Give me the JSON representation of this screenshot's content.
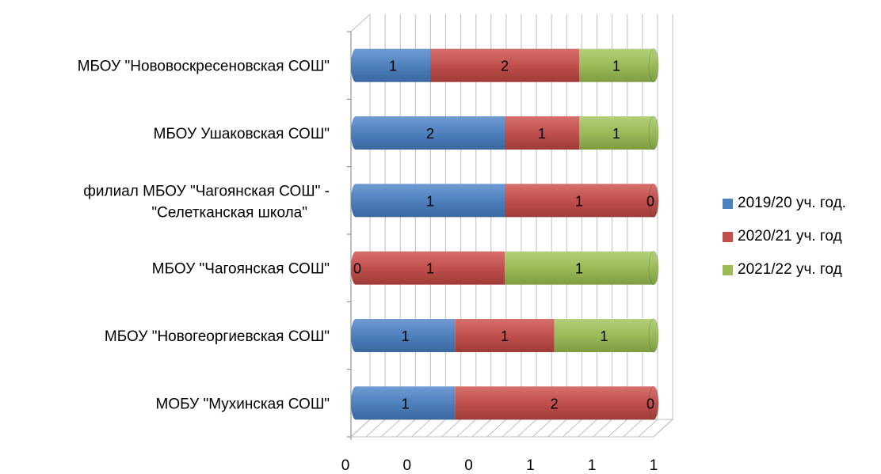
{
  "chart_data": {
    "type": "bar",
    "orientation": "horizontal",
    "stacked": "percent",
    "three_d": true,
    "categories": [
      "МОБУ \"Мухинская СОШ\"",
      "МБОУ \"Новогеоргиевская СОШ\"",
      "МБОУ \"Чагоянская СОШ\"",
      "филиал МБОУ \"Чагоянская СОШ\" - \"Селетканская школа\"",
      "МБОУ Ушаковская СОШ\"",
      "МБОУ \"Нововоскресеновская СОШ\""
    ],
    "series": [
      {
        "name": "2019/20 уч. год.",
        "color": "#4F81BD",
        "values": [
          1,
          1,
          0,
          1,
          2,
          1
        ]
      },
      {
        "name": "2020/21 уч. год",
        "color": "#C0504D",
        "values": [
          2,
          1,
          1,
          1,
          1,
          2
        ]
      },
      {
        "name": "2021/22 уч. год",
        "color": "#9BBB59",
        "values": [
          0,
          1,
          1,
          0,
          1,
          1
        ]
      }
    ],
    "x_tick_labels": [
      "0",
      "0",
      "0",
      "1",
      "1",
      "1"
    ],
    "xlim": [
      0,
      1
    ],
    "grid": true,
    "legend_position": "right"
  }
}
